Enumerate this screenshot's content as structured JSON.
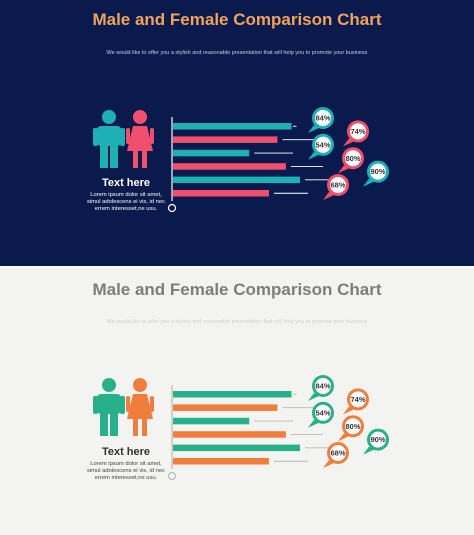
{
  "slides": [
    {
      "title": "Male and Female Comparison Chart",
      "subtitle": "We would like to offer you a stylish and reasonable presentation that will help you to promote your business",
      "text_heading": "Text here",
      "text_body": "Lorem ipsum dolor sit amet, simul adolescens ei vis, id nec errem interesset,ne usu.",
      "colors": {
        "background": "#0b1a4c",
        "male": "#1fb0b6",
        "female": "#f0506e",
        "axis": "#ffffff",
        "title": "#f0a35c"
      }
    },
    {
      "title": "Male and Female Comparison Chart",
      "subtitle": "We would like to offer you a stylish and reasonable presentation that will help you to promote your business",
      "text_heading": "Text here",
      "text_body": "Lorem ipsum dolor sit amet, simul adolescens ei vis, id nec errem interesset,ne usu.",
      "colors": {
        "background": "#f3f3f1",
        "male": "#27b08a",
        "female": "#ef7d3c",
        "axis": "#b8b8b8",
        "title": "#7d7d7d"
      }
    }
  ],
  "chart_data": {
    "type": "bar",
    "orientation": "horizontal",
    "bars": [
      {
        "group": "male",
        "value": 84,
        "label": "84%"
      },
      {
        "group": "female",
        "value": 74,
        "label": "74%"
      },
      {
        "group": "male",
        "value": 54,
        "label": "54%"
      },
      {
        "group": "female",
        "value": 80,
        "label": "80%"
      },
      {
        "group": "male",
        "value": 90,
        "label": "90%"
      },
      {
        "group": "female",
        "value": 68,
        "label": "68%"
      }
    ]
  }
}
